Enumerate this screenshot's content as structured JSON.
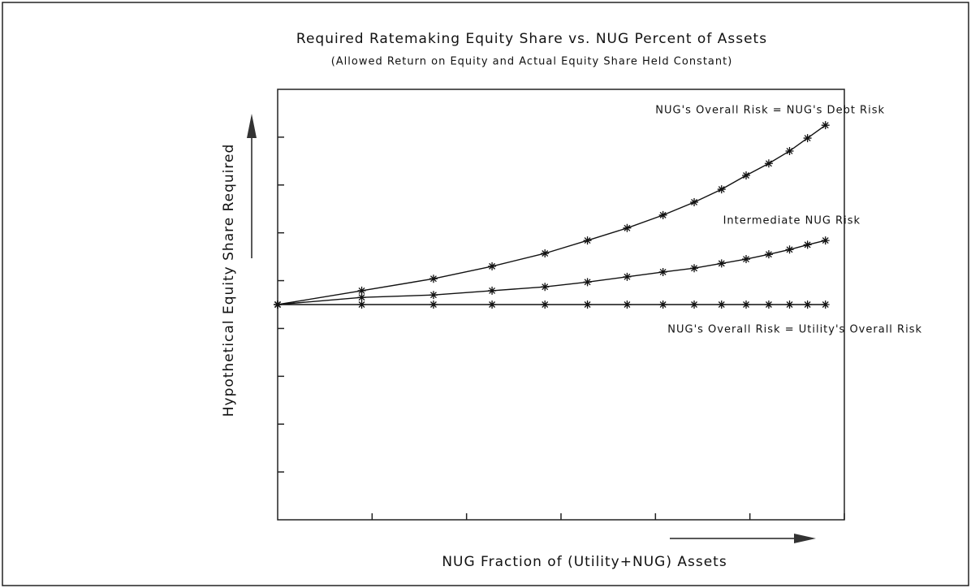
{
  "chart_data": {
    "type": "line",
    "title": "Required Ratemaking Equity Share vs. NUG Percent of Assets",
    "subtitle": "(Allowed Return on Equity and Actual Equity Share Held Constant)",
    "xlabel": "NUG Fraction of (Utility+NUG) Assets",
    "ylabel": "Hypothetical Equity Share Required",
    "x": [
      0,
      0.89,
      1.65,
      2.27,
      2.83,
      3.28,
      3.7,
      4.08,
      4.41,
      4.7,
      4.96,
      5.2,
      5.42,
      5.61,
      5.8
    ],
    "series": [
      {
        "name": "NUG's Overall Risk = NUG's Debt Risk",
        "color": "#111111",
        "values": [
          4.5,
          4.79,
          5.04,
          5.3,
          5.57,
          5.84,
          6.1,
          6.37,
          6.64,
          6.91,
          7.2,
          7.45,
          7.71,
          7.98,
          8.25
        ]
      },
      {
        "name": "Intermediate NUG Risk",
        "color": "#111111",
        "values": [
          4.5,
          4.65,
          4.7,
          4.79,
          4.87,
          4.97,
          5.08,
          5.18,
          5.26,
          5.36,
          5.45,
          5.55,
          5.65,
          5.75,
          5.84
        ]
      },
      {
        "name": "NUG's Overall Risk = Utility's Overall Risk",
        "color": "#111111",
        "values": [
          4.5,
          4.5,
          4.5,
          4.5,
          4.5,
          4.5,
          4.5,
          4.5,
          4.5,
          4.5,
          4.5,
          4.5,
          4.5,
          4.5,
          4.5
        ]
      }
    ],
    "xlim": [
      0,
      6
    ],
    "xticks": [
      1,
      2,
      3,
      4,
      5,
      6
    ],
    "ylim": [
      0,
      9
    ],
    "yticks": [
      1,
      2,
      3,
      4,
      5,
      6,
      7,
      8
    ],
    "grid": false
  }
}
